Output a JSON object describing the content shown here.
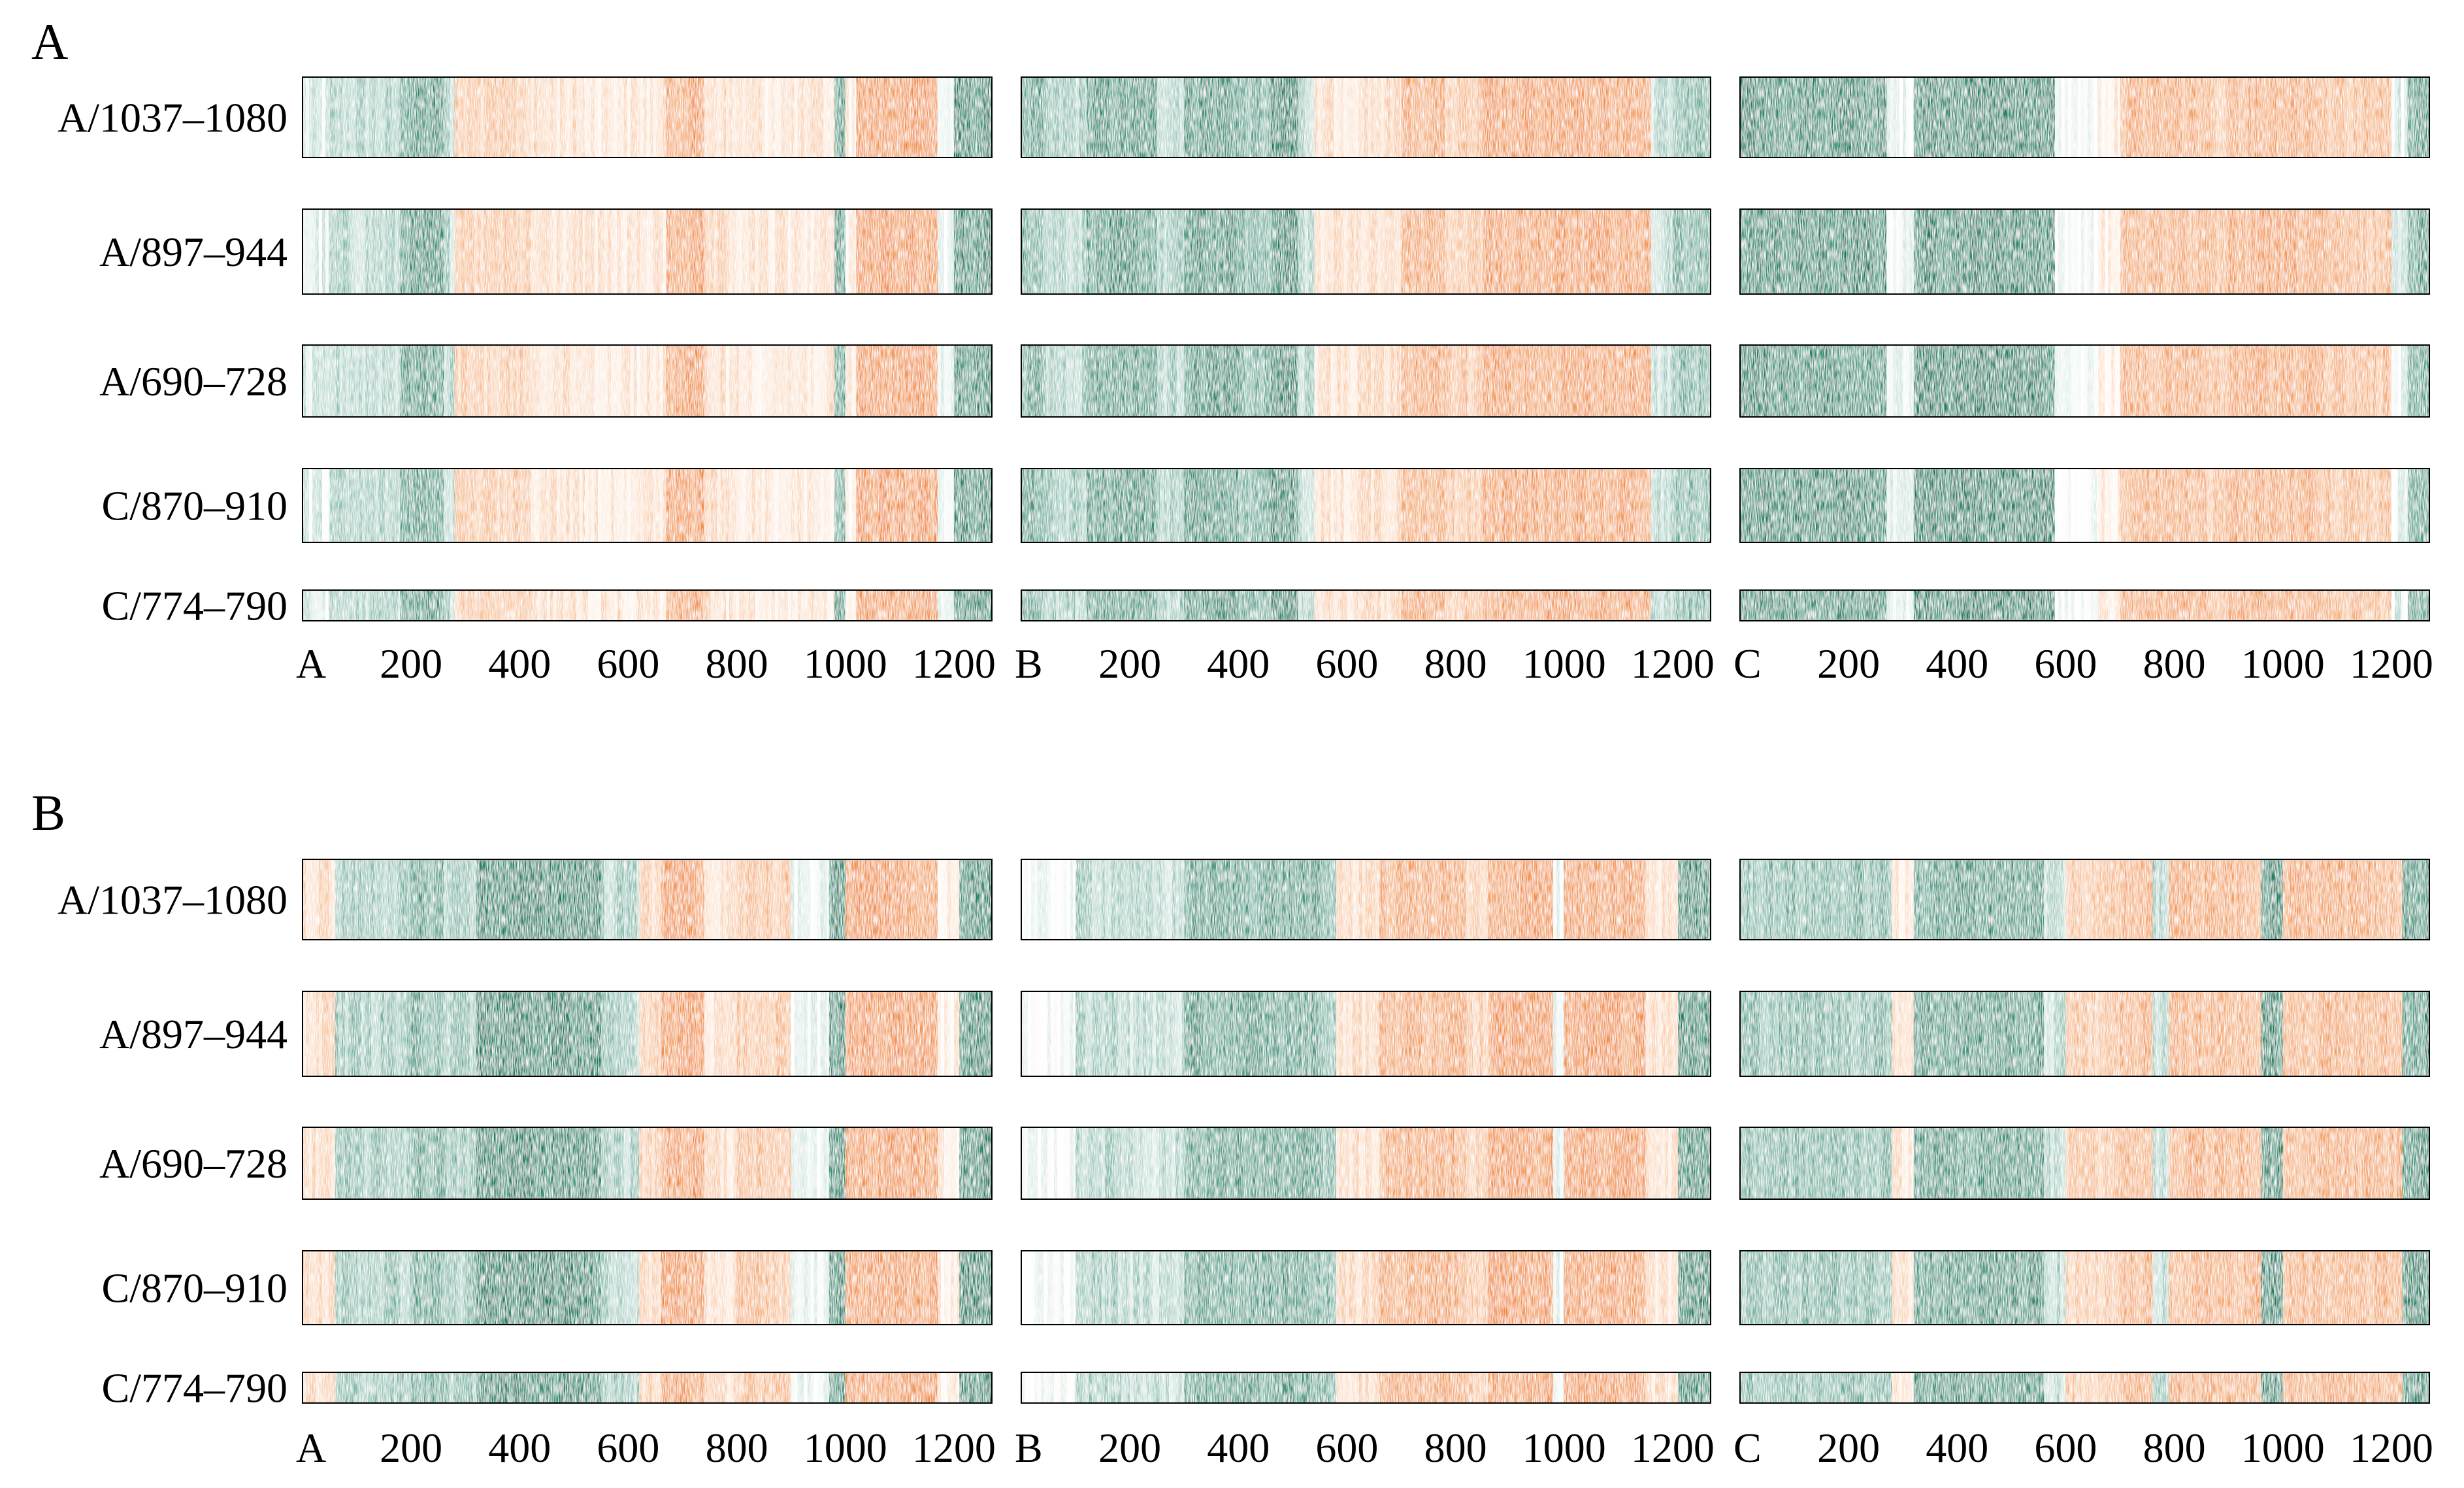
{
  "colors": {
    "orange": "#f08a3c",
    "green": "#127a5e",
    "background": "#ffffff",
    "frame": "#000000"
  },
  "chart_data": {
    "type": "heatmap",
    "panels": [
      {
        "label": "A",
        "rows": [
          "A/1037–1080",
          "A/897–944",
          "A/690–728",
          "C/870–910",
          "C/774–790"
        ],
        "columns": [
          {
            "label": "A",
            "xlim": [
              0,
              1270
            ],
            "ticks": [
              "200",
              "400",
              "600",
              "800",
              "1000",
              "1200"
            ],
            "tick_values": [
              200,
              400,
              600,
              800,
              1000,
              1200
            ],
            "segments": [
              [
                0,
                0.15
              ],
              [
                50,
                0.35
              ],
              [
                180,
                0.75
              ],
              [
                260,
                0.35
              ],
              [
                280,
                -0.45
              ],
              [
                420,
                -0.3
              ],
              [
                520,
                -0.25
              ],
              [
                670,
                -0.8
              ],
              [
                740,
                -0.35
              ],
              [
                780,
                -0.25
              ],
              [
                980,
                0.75
              ],
              [
                1000,
                -0.2
              ],
              [
                1020,
                -0.85
              ],
              [
                1170,
                0.1
              ],
              [
                1200,
                0.85
              ],
              [
                1270,
                0
              ]
            ]
          },
          {
            "label": "B",
            "xlim": [
              0,
              1270
            ],
            "ticks": [
              "200",
              "400",
              "600",
              "800",
              "1000",
              "1200"
            ],
            "tick_values": [
              200,
              400,
              600,
              800,
              1000,
              1200
            ],
            "segments": [
              [
                0,
                0.7
              ],
              [
                40,
                0.4
              ],
              [
                120,
                0.75
              ],
              [
                250,
                0.4
              ],
              [
                300,
                0.8
              ],
              [
                400,
                0.6
              ],
              [
                460,
                0.9
              ],
              [
                510,
                0.35
              ],
              [
                540,
                -0.3
              ],
              [
                620,
                -0.35
              ],
              [
                700,
                -0.75
              ],
              [
                780,
                -0.5
              ],
              [
                850,
                -0.8
              ],
              [
                1160,
                0.3
              ],
              [
                1200,
                0.55
              ],
              [
                1270,
                0
              ]
            ]
          },
          {
            "label": "C",
            "xlim": [
              0,
              1270
            ],
            "ticks": [
              "200",
              "400",
              "600",
              "800",
              "1000",
              "1200"
            ],
            "tick_values": [
              200,
              400,
              600,
              800,
              1000,
              1200
            ],
            "segments": [
              [
                0,
                0.85
              ],
              [
                270,
                0.1
              ],
              [
                320,
                0.9
              ],
              [
                580,
                0.05
              ],
              [
                660,
                -0.2
              ],
              [
                700,
                -0.7
              ],
              [
                860,
                -0.55
              ],
              [
                900,
                -0.75
              ],
              [
                1070,
                -0.6
              ],
              [
                1200,
                0.15
              ],
              [
                1230,
                0.7
              ],
              [
                1270,
                0
              ]
            ]
          }
        ]
      },
      {
        "label": "B",
        "rows": [
          "A/1037–1080",
          "A/897–944",
          "A/690–728",
          "C/870–910",
          "C/774–790"
        ],
        "columns": [
          {
            "label": "A",
            "xlim": [
              0,
              1270
            ],
            "ticks": [
              "200",
              "400",
              "600",
              "800",
              "1000",
              "1200"
            ],
            "tick_values": [
              200,
              400,
              600,
              800,
              1000,
              1200
            ],
            "segments": [
              [
                0,
                -0.35
              ],
              [
                60,
                0.45
              ],
              [
                200,
                0.65
              ],
              [
                260,
                0.45
              ],
              [
                320,
                0.9
              ],
              [
                550,
                0.4
              ],
              [
                620,
                -0.4
              ],
              [
                660,
                -0.85
              ],
              [
                740,
                -0.3
              ],
              [
                800,
                -0.55
              ],
              [
                900,
                0.1
              ],
              [
                970,
                0.85
              ],
              [
                1000,
                -0.85
              ],
              [
                1170,
                -0.2
              ],
              [
                1210,
                0.9
              ],
              [
                1270,
                0
              ]
            ]
          },
          {
            "label": "B",
            "xlim": [
              0,
              1270
            ],
            "ticks": [
              "200",
              "400",
              "600",
              "800",
              "1000",
              "1200"
            ],
            "tick_values": [
              200,
              400,
              600,
              800,
              1000,
              1200
            ],
            "segments": [
              [
                0,
                0.05
              ],
              [
                100,
                0.4
              ],
              [
                200,
                0.3
              ],
              [
                300,
                0.7
              ],
              [
                550,
                0.55
              ],
              [
                580,
                -0.35
              ],
              [
                660,
                -0.75
              ],
              [
                820,
                -0.45
              ],
              [
                860,
                -0.85
              ],
              [
                980,
                0.1
              ],
              [
                1000,
                -0.85
              ],
              [
                1150,
                -0.3
              ],
              [
                1210,
                0.85
              ],
              [
                1270,
                0
              ]
            ]
          },
          {
            "label": "C",
            "xlim": [
              0,
              1270
            ],
            "ticks": [
              "200",
              "400",
              "600",
              "800",
              "1000",
              "1200"
            ],
            "tick_values": [
              200,
              400,
              600,
              800,
              1000,
              1200
            ],
            "segments": [
              [
                0,
                0.55
              ],
              [
                280,
                -0.25
              ],
              [
                320,
                0.75
              ],
              [
                560,
                0.3
              ],
              [
                600,
                -0.5
              ],
              [
                700,
                -0.7
              ],
              [
                760,
                0.35
              ],
              [
                790,
                -0.7
              ],
              [
                960,
                0.85
              ],
              [
                1000,
                -0.7
              ],
              [
                1220,
                0.8
              ],
              [
                1270,
                0
              ]
            ]
          }
        ]
      }
    ]
  }
}
